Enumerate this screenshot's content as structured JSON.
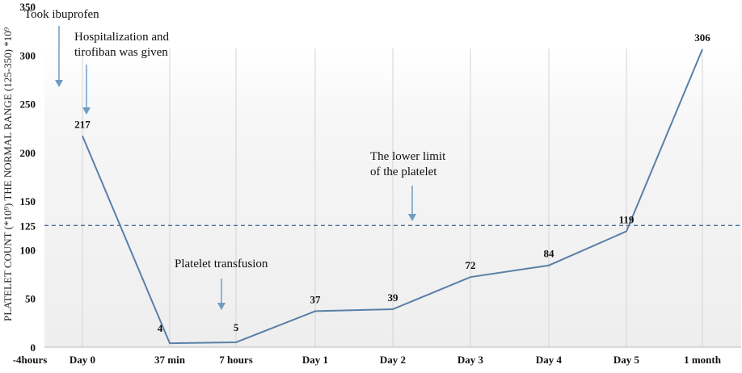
{
  "chart_data": {
    "type": "line",
    "title": "",
    "xlabel": "",
    "ylabel": "PLATELET COUNT (*10⁹)  THE NORMAL RANGE (125-350) *10⁹",
    "ylim": [
      0,
      350
    ],
    "yticks": [
      0,
      50,
      100,
      125,
      150,
      200,
      250,
      300,
      350
    ],
    "categories": [
      "-4hours",
      "Day 0",
      "37 min",
      "7 hours",
      "Day 1",
      "Day 2",
      "Day 3",
      "Day 4",
      "Day 5",
      "1 month"
    ],
    "series": [
      {
        "name": "Platelet count",
        "values": [
          null,
          217,
          4,
          5,
          37,
          39,
          72,
          84,
          119,
          306
        ]
      }
    ],
    "reference_line": {
      "value": 125,
      "style": "dashed"
    },
    "annotations": [
      {
        "lines": [
          "Took ibuprofen"
        ],
        "category": "-4hours"
      },
      {
        "lines": [
          "Hospitalization and",
          "tirofiban was given"
        ],
        "category": "Day 0"
      },
      {
        "lines": [
          "The lower limit",
          "of the platelet"
        ],
        "category": "Day 2"
      },
      {
        "lines": [
          "Platelet transfusion"
        ],
        "category": "7 hours"
      }
    ],
    "colors": {
      "line": "#5a7fa8",
      "arrow": "#6f9cc4",
      "ref": "#4a6f99"
    },
    "grid": "vertical"
  }
}
